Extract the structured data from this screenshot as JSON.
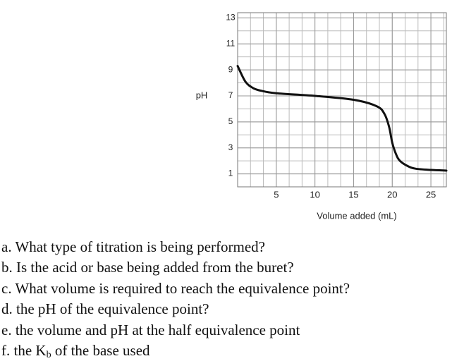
{
  "chart_data": {
    "type": "line",
    "y_label": "pH",
    "x_label": "Volume added (mL)",
    "x": [
      0,
      1,
      2,
      3,
      5,
      10,
      15,
      18,
      19,
      19.6,
      20,
      20.5,
      21,
      22,
      23,
      25,
      27
    ],
    "series": [
      {
        "color": "#111111",
        "values": [
          9.3,
          8.1,
          7.6,
          7.4,
          7.2,
          7.0,
          6.7,
          6.2,
          5.6,
          4.6,
          3.4,
          2.5,
          2.0,
          1.6,
          1.4,
          1.3,
          1.25
        ]
      }
    ],
    "xlim": [
      0,
      27
    ],
    "xticks": [
      5,
      10,
      15,
      20,
      25
    ],
    "ylim": [
      0,
      13.4
    ],
    "yticks": [
      1,
      3,
      5,
      7,
      9,
      11,
      13
    ],
    "grid": true
  },
  "questions": [
    {
      "text": "a. What type of titration is being performed?"
    },
    {
      "text": "b. Is the acid or base being added from the buret?"
    },
    {
      "text": "c. What volume is required to reach the equivalence point?"
    },
    {
      "text": "d. the pH of the equivalence point?"
    },
    {
      "text": "e. the volume and pH at the half equivalence point"
    },
    {
      "text": "f. the K",
      "sub": "b",
      "tail": " of the base used"
    }
  ]
}
